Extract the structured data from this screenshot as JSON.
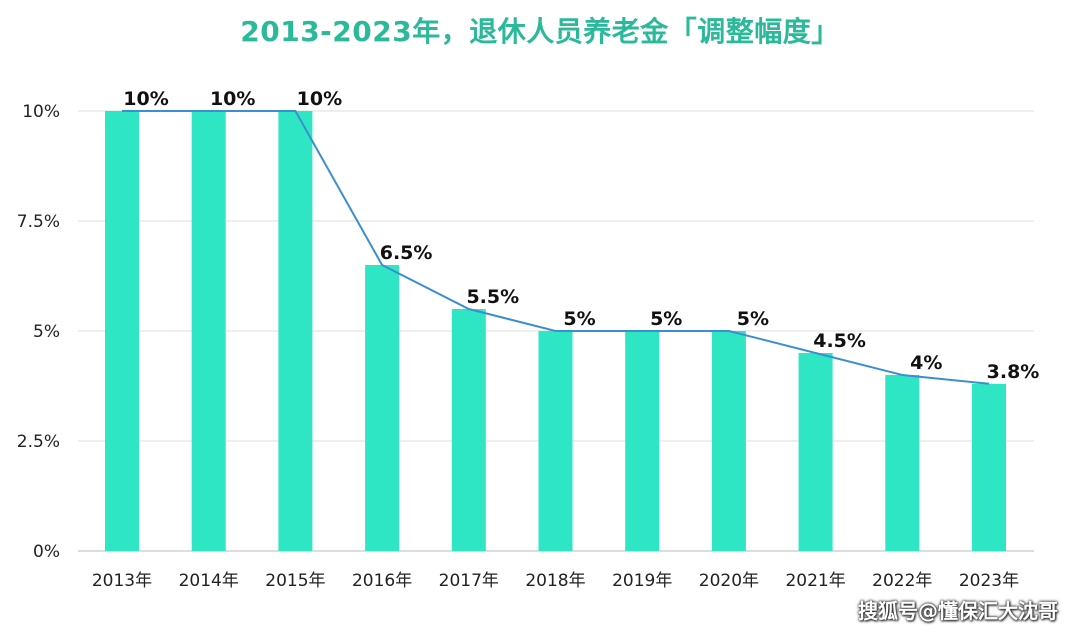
{
  "chart_data": {
    "type": "bar",
    "title": "2013-2023年，退休人员养老金「调整幅度」",
    "categories": [
      "2013年",
      "2014年",
      "2015年",
      "2016年",
      "2017年",
      "2018年",
      "2019年",
      "2020年",
      "2021年",
      "2022年",
      "2023年"
    ],
    "values": [
      10,
      10,
      10,
      6.5,
      5.5,
      5,
      5,
      5,
      4.5,
      4,
      3.8
    ],
    "data_labels": [
      "10%",
      "10%",
      "10%",
      "6.5%",
      "5.5%",
      "5%",
      "5%",
      "5%",
      "4.5%",
      "4%",
      "3.8%"
    ],
    "yticks": [
      0,
      2.5,
      5,
      7.5,
      10
    ],
    "ytick_labels": [
      "0%",
      "2.5%",
      "5%",
      "7.5%",
      "10%"
    ],
    "ylim": [
      0,
      10
    ],
    "grid": true,
    "overlay_line": true,
    "colors": {
      "bar": "#2ee6c4",
      "line": "#3b8fd0",
      "title": "#2bb99a"
    }
  },
  "watermark": "搜狐号@懂保汇大沈哥"
}
